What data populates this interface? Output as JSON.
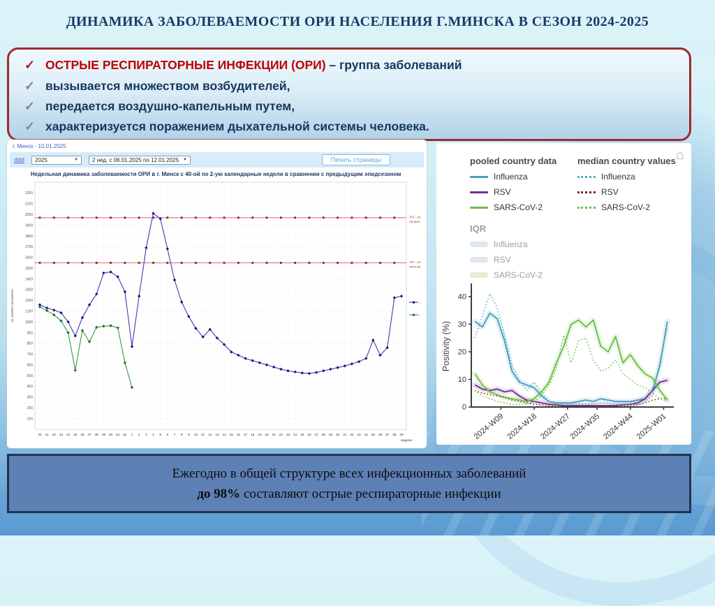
{
  "colors": {
    "title_text": "#1b3a66",
    "bullet_red": "#c00000",
    "bullet_navy": "#17365d",
    "box_border": "#9e2a2b",
    "footer_bg": "#5d80b5",
    "footer_border": "#22334f"
  },
  "slide": {
    "title": "ДИНАМИКА ЗАБОЛЕВАЕМОСТИ ОРИ НАСЕЛЕНИЯ Г.МИНСКА В СЕЗОН 2024-2025",
    "check_mark": "✓",
    "bullets": [
      {
        "check_color": "#9f1c20",
        "lead": "ОСТРЫЕ РЕСПИРАТОРНЫЕ ИНФЕКЦИИ (ОРИ)",
        "rest": " – группа заболеваний"
      },
      {
        "check_color": "#8b8378",
        "lead": "",
        "rest": "вызывается множеством возбудителей,"
      },
      {
        "check_color": "#8b8378",
        "lead": "",
        "rest": "передается воздушно-капельным путем,"
      },
      {
        "check_color": "#8b8378",
        "lead": "",
        "rest": "характеризуется поражением дыхательной системы человека."
      }
    ],
    "footer_line1": "Ежегодно в общей структуре всех инфекционных заболеваний",
    "footer_line2_bold": "до 98%",
    "footer_line2_rest": " составляют острые респираторные инфекции"
  },
  "left_panel": {
    "region_date_link": "г. Минск - 10.01.2025",
    "nav_link": "ddd",
    "year_select": "2025",
    "period_select": "2 нед. с 06.01.2025 по 12.01.2025",
    "print_button": "Печать страницы"
  },
  "right_panel": {
    "legend_col1": "pooled country data",
    "legend_col2": "median country values",
    "iqr_label": "IQR",
    "home_icon": "⌂",
    "pooled_entries": [
      {
        "label": "Influenza",
        "color": "#4a9fba"
      },
      {
        "label": "RSV",
        "color": "#73308f"
      },
      {
        "label": "SARS-CoV-2",
        "color": "#6cbf44"
      }
    ],
    "median_entries": [
      {
        "label": "Influenza",
        "color": "#58abc4"
      },
      {
        "label": "RSV",
        "color": "#7b241c"
      },
      {
        "label": "SARS-CoV-2",
        "color": "#6cbf44"
      }
    ],
    "iqr_entries": [
      {
        "label": "Influenza",
        "color": "#dde8f1"
      },
      {
        "label": "RSV",
        "color": "#eae2f1"
      },
      {
        "label": "SARS-CoV-2",
        "color": "#e2f0d9"
      }
    ]
  },
  "chart_data": [
    {
      "type": "line",
      "title": "Недельная динамика заболеваемости ОРИ в г. Минск с 40-ой по 2-ую календарные недели в сравнении с предыдущим эпидсезоном",
      "ylabel": "на 100000 населения",
      "xlabel": "недели",
      "ylim": [
        0,
        2300
      ],
      "ytick_step": 100,
      "ytick_max": 2200,
      "grid": true,
      "categories": [
        "40",
        "41",
        "42",
        "43",
        "44",
        "45",
        "46",
        "47",
        "48",
        "49",
        "50",
        "51",
        "52",
        "1",
        "2",
        "3",
        "4",
        "5",
        "6",
        "7",
        "8",
        "9",
        "10",
        "11",
        "12",
        "13",
        "14",
        "15",
        "16",
        "17",
        "18",
        "19",
        "20",
        "21",
        "22",
        "23",
        "24",
        "25",
        "26",
        "27",
        "28",
        "29",
        "30",
        "31",
        "32",
        "33",
        "34",
        "35",
        "36",
        "37",
        "38",
        "39"
      ],
      "series": [
        {
          "name": "2023-2024 г.",
          "color": "#3c3cb4",
          "marker_color": "#15157a",
          "values": [
            1160,
            1130,
            1110,
            1085,
            1000,
            870,
            1040,
            1160,
            1260,
            1455,
            1465,
            1420,
            1280,
            770,
            1240,
            1690,
            2010,
            1960,
            1680,
            1390,
            1185,
            1050,
            940,
            860,
            930,
            850,
            790,
            720,
            690,
            660,
            640,
            620,
            600,
            580,
            560,
            545,
            535,
            525,
            520,
            530,
            545,
            560,
            575,
            590,
            610,
            630,
            660,
            830,
            690,
            760,
            1225,
            1240
          ]
        },
        {
          "name": "2024-2025 г.",
          "color": "#2f9e41",
          "marker_color": "#1c6e2d",
          "values": [
            1140,
            1105,
            1065,
            1010,
            900,
            550,
            920,
            815,
            950,
            960,
            965,
            945,
            620,
            390
          ]
        }
      ],
      "thresholds": [
        {
          "label1": "ЭП - эп.ур.",
          "label2": "начальный",
          "value": 1970,
          "line_color": "#ef8699",
          "marker_color": "#8e1a28"
        },
        {
          "label1": "ЭП - эп.ур.",
          "label2": "окончания",
          "value": 1550,
          "line_color": "#ef8699",
          "marker_color": "#8e1a28"
        }
      ]
    },
    {
      "type": "line",
      "ylabel": "Positivity (%)",
      "ylim": [
        0,
        44
      ],
      "yticks": [
        0,
        10,
        20,
        30,
        40
      ],
      "xlim": [
        1,
        55
      ],
      "x": [
        2,
        4,
        6,
        8,
        10,
        12,
        14,
        16,
        18,
        20,
        22,
        24,
        26,
        28,
        30,
        32,
        34,
        36,
        38,
        40,
        42,
        44,
        46,
        48,
        50,
        52,
        54
      ],
      "xticks": [
        {
          "x": 9,
          "label": "2024-W09"
        },
        {
          "x": 18,
          "label": "2024-W18"
        },
        {
          "x": 27,
          "label": "2024-W27"
        },
        {
          "x": 35,
          "label": "2024-W35"
        },
        {
          "x": 44,
          "label": "2024-W44"
        },
        {
          "x": 53,
          "label": "2025-W01"
        }
      ],
      "series": [
        {
          "name": "Influenza pooled",
          "color": "#4a9fba",
          "style": "solid",
          "iqr": true,
          "values": [
            31,
            29,
            34,
            32,
            24,
            13,
            9,
            8,
            7,
            4,
            2,
            1.5,
            1.5,
            1.5,
            2,
            2.5,
            2,
            3,
            2.5,
            2,
            2,
            2,
            2.5,
            3,
            6,
            15,
            31
          ]
        },
        {
          "name": "RSV pooled",
          "color": "#73308f",
          "style": "solid",
          "iqr": true,
          "values": [
            8,
            6.5,
            6,
            6.5,
            5.5,
            6,
            4,
            2.5,
            2,
            1.5,
            1,
            0.8,
            0.5,
            0.5,
            0.5,
            0.5,
            0.5,
            0.5,
            0.5,
            0.5,
            0.8,
            1,
            1.5,
            3,
            6,
            9,
            9.7
          ]
        },
        {
          "name": "SARS-CoV-2 pooled",
          "color": "#6cbf44",
          "style": "solid",
          "iqr": true,
          "values": [
            12,
            8,
            5.5,
            4.5,
            3.5,
            3,
            2.5,
            2,
            3,
            5.5,
            9,
            16,
            22,
            30,
            31.5,
            29,
            31.5,
            22,
            20,
            25.5,
            16,
            19,
            15,
            12,
            10.5,
            6,
            2.5
          ]
        },
        {
          "name": "Influenza median",
          "color": "#58abc4",
          "style": "dotted",
          "iqr": false,
          "values": [
            25,
            33,
            41,
            36,
            26,
            15,
            10,
            6,
            9,
            5,
            2,
            1,
            1,
            1,
            1,
            1,
            1,
            1.5,
            1.5,
            1,
            1,
            1,
            1,
            2,
            4,
            17,
            29
          ]
        },
        {
          "name": "RSV median",
          "color": "#7b241c",
          "style": "dotted",
          "iqr": false,
          "values": [
            6,
            5,
            4.5,
            4,
            3.5,
            2.5,
            2,
            1.5,
            1,
            0.8,
            0.5,
            0.3,
            0.3,
            0.3,
            0.3,
            0.3,
            0.3,
            0.3,
            0.3,
            0.3,
            0.3,
            0.5,
            0.8,
            1.5,
            2.5,
            3,
            3
          ]
        },
        {
          "name": "SARS-CoV-2 median",
          "color": "#6cbf44",
          "style": "dotted",
          "iqr": false,
          "values": [
            6,
            4,
            3,
            2,
            1.5,
            1,
            1,
            1,
            2,
            4,
            8,
            14,
            26,
            16,
            24,
            25,
            17,
            13,
            14,
            17,
            12,
            10,
            8,
            7,
            5,
            3,
            2
          ]
        }
      ]
    }
  ]
}
